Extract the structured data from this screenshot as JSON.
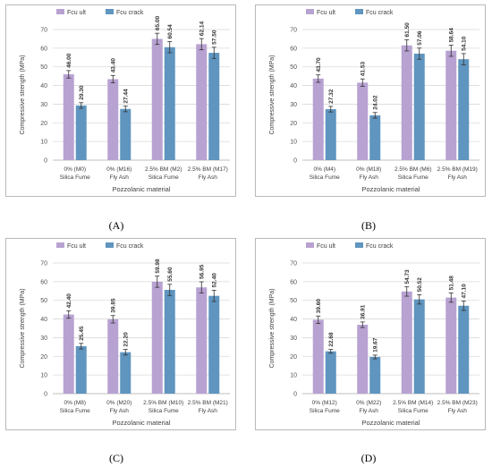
{
  "colors": {
    "ult": "#b8a2d2",
    "crack": "#5f95bf",
    "grid": "#d9d9d9",
    "axis_text": "#555555"
  },
  "captions": [
    "(A)",
    "(B)",
    "(C)",
    "(D)"
  ],
  "chart_data": [
    {
      "type": "bar",
      "panel": "(A)",
      "xlabel": "Pozzolanic material",
      "ylabel": "Compressive  strength (MPa)",
      "ylim": [
        0,
        70
      ],
      "yticks": [
        "0",
        "10",
        "20",
        "30",
        "40",
        "50",
        "60",
        "70"
      ],
      "categories": [
        [
          "0% (M0)",
          "Silica Fume"
        ],
        [
          "0%  (M16)",
          "Fly Ash"
        ],
        [
          "2.5% BM (M2)",
          "Silica Fume"
        ],
        [
          "2.5% BM (M17)",
          "Fly Ash"
        ]
      ],
      "series": [
        {
          "name": "Fcu ult",
          "values": [
            46.0,
            43.4,
            65.0,
            62.14
          ],
          "labels": [
            "46.00",
            "43.40",
            "65.00",
            "62.14"
          ],
          "error": [
            2.0,
            2.0,
            3.0,
            3.0
          ]
        },
        {
          "name": "Fcu crack",
          "values": [
            29.3,
            27.44,
            60.54,
            57.5
          ],
          "labels": [
            "29.30",
            "27.44",
            "60.54",
            "57.50"
          ],
          "error": [
            1.5,
            1.5,
            3.0,
            3.0
          ]
        }
      ],
      "legend": "top-left"
    },
    {
      "type": "bar",
      "panel": "(B)",
      "xlabel": "Pozzolanic material",
      "ylabel": "Compressive  strength (MPa)",
      "ylim": [
        0,
        70
      ],
      "yticks": [
        "0",
        "10",
        "20",
        "30",
        "40",
        "50",
        "60",
        "70"
      ],
      "categories": [
        [
          "0% (M4)",
          "Silica Fume"
        ],
        [
          "0% (M18)",
          "Fly Ash"
        ],
        [
          "2.5% BM (M6)",
          "Silica Fume"
        ],
        [
          "2.5% BM (M19)",
          "Fly Ash"
        ]
      ],
      "series": [
        {
          "name": "Fcu ult",
          "values": [
            43.7,
            41.53,
            61.5,
            58.64
          ],
          "labels": [
            "43.70",
            "41.53",
            "61.50",
            "58.64"
          ],
          "error": [
            2.0,
            2.0,
            3.0,
            3.0
          ]
        },
        {
          "name": "Fcu crack",
          "values": [
            27.32,
            24.02,
            57.06,
            54.1
          ],
          "labels": [
            "27.32",
            "24.02",
            "57.06",
            "54.10"
          ],
          "error": [
            1.5,
            1.5,
            3.0,
            3.0
          ]
        }
      ],
      "legend": "top-left"
    },
    {
      "type": "bar",
      "panel": "(C)",
      "xlabel": "Pozzolanic material",
      "ylabel": "Compressive  strength (MPa)",
      "ylim": [
        0,
        70
      ],
      "yticks": [
        "0",
        "10",
        "20",
        "30",
        "40",
        "50",
        "60",
        "70"
      ],
      "categories": [
        [
          "0% (M8)",
          "Silica Fume"
        ],
        [
          "0% (M20)",
          "Fly Ash"
        ],
        [
          "2.5% BM (M10)",
          "Silica Fume"
        ],
        [
          "2.5% BM (M21)",
          "Fly Ash"
        ]
      ],
      "series": [
        {
          "name": "Fcu ult",
          "values": [
            42.4,
            39.85,
            59.98,
            56.95
          ],
          "labels": [
            "42.40",
            "39.85",
            "59.98",
            "56.95"
          ],
          "error": [
            2.0,
            2.0,
            3.0,
            3.0
          ]
        },
        {
          "name": "Fcu crack",
          "values": [
            25.45,
            22.2,
            55.6,
            52.4
          ],
          "labels": [
            "25.45",
            "22.20",
            "55.60",
            "52.40"
          ],
          "error": [
            1.5,
            1.5,
            3.0,
            3.0
          ]
        }
      ],
      "legend": "top-left"
    },
    {
      "type": "bar",
      "panel": "(D)",
      "xlabel": "Pozzolanic material",
      "ylabel": "Compressive  strength (MPa)",
      "ylim": [
        0,
        70
      ],
      "yticks": [
        "0",
        "10",
        "20",
        "30",
        "40",
        "50",
        "60",
        "70"
      ],
      "categories": [
        [
          "0% (M12)",
          "Silica Fume"
        ],
        [
          "0% (M22)",
          "Fly Ash"
        ],
        [
          "2.5% BM (M14)",
          "Silica Fume"
        ],
        [
          "2.5% BM (M23)",
          "Fly Ash"
        ]
      ],
      "series": [
        {
          "name": "Fcu ult",
          "values": [
            39.6,
            36.91,
            54.73,
            51.48
          ],
          "labels": [
            "39.60",
            "36.91",
            "54.73",
            "51.48"
          ],
          "error": [
            2.0,
            1.5,
            2.5,
            2.5
          ]
        },
        {
          "name": "Fcu crack",
          "values": [
            22.68,
            19.67,
            50.52,
            47.1
          ],
          "labels": [
            "22.68",
            "19.67",
            "50.52",
            "47.10"
          ],
          "error": [
            1.0,
            1.0,
            2.5,
            2.5
          ]
        }
      ],
      "legend": "top-left"
    }
  ]
}
